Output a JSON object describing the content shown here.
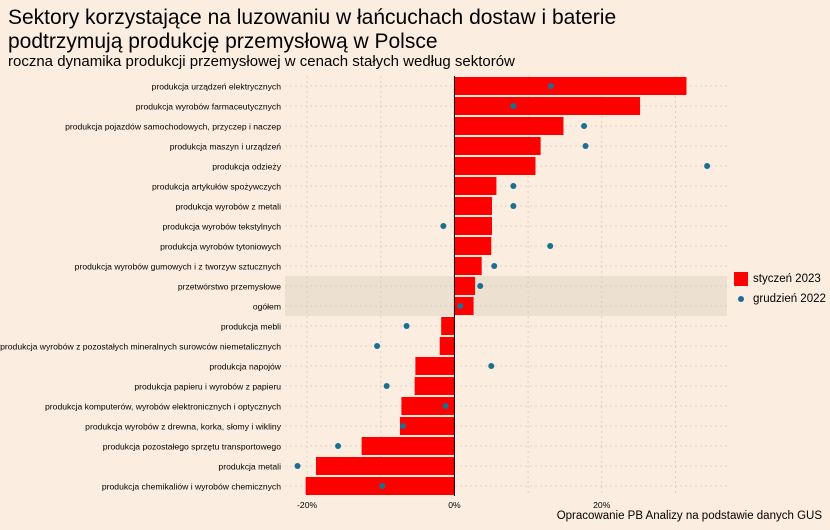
{
  "title": "Sektory korzystające na luzowaniu w łańcuchach dostaw i baterie podtrzymują produkcję przemysłową w Polsce",
  "subtitle": "roczna dynamika produkcji przemysłowej w cenach stałych według sektorów",
  "caption": "Opracowanie PB Analizy na podstawie danych GUS",
  "colors": {
    "bar": "#ff0000",
    "dot": "#1b6f8f",
    "highlight": "#ece0d0",
    "grid": "#d9ccbc"
  },
  "chart_data": {
    "type": "bar",
    "orientation": "horizontal",
    "xlim": [
      -23,
      37
    ],
    "x_ticks": [
      -20,
      0,
      20
    ],
    "x_tick_labels": [
      "-20%",
      "0%",
      "20%"
    ],
    "grid": true,
    "legend_position": "right",
    "highlighted_categories": [
      "przetwórstwo przemysłowe",
      "ogółem"
    ],
    "categories": [
      "produkcja urządzeń elektrycznych",
      "produkcja wyrobów farmaceutycznych",
      "produkcja pojazdów samochodowych, przyczep i naczep",
      "produkcja maszyn i urządzeń",
      "produkcja odzieży",
      "produkcja artykułów spożywczych",
      "produkcja wyrobów z metali",
      "produkcja wyrobów tekstylnych",
      "produkcja wyrobów tytoniowych",
      "produkcja wyrobów gumowych i z tworzyw sztucznych",
      "przetwórstwo przemysłowe",
      "ogółem",
      "produkcja mebli",
      "produkcja wyrobów z pozostałych mineralnych surowców niemetalicznych",
      "produkcja napojów",
      "produkcja papieru i wyrobów z papieru",
      "produkcja komputerów, wyrobów elektronicznych i optycznych",
      "produkcja wyrobów z drewna, korka, słomy i wikliny",
      "produkcja pozostałego sprzętu transportowego",
      "produkcja metali",
      "produkcja chemikaliów i wyrobów chemicznych"
    ],
    "series": [
      {
        "name": "styczeń 2023",
        "type": "bar",
        "values": [
          31.5,
          25.2,
          14.8,
          11.7,
          11.0,
          5.7,
          5.1,
          5.1,
          5.0,
          3.7,
          2.8,
          2.6,
          -1.8,
          -2.0,
          -5.3,
          -5.4,
          -7.2,
          -7.4,
          -12.6,
          -18.8,
          -20.2
        ]
      },
      {
        "name": "grudzień 2022",
        "type": "scatter",
        "values": [
          13.1,
          8.0,
          17.6,
          17.8,
          34.3,
          8.0,
          8.0,
          -1.5,
          13.0,
          5.4,
          3.5,
          0.8,
          -6.5,
          -10.5,
          5.0,
          -9.2,
          -1.2,
          -7.0,
          -15.8,
          -21.3,
          -9.8
        ]
      }
    ]
  }
}
